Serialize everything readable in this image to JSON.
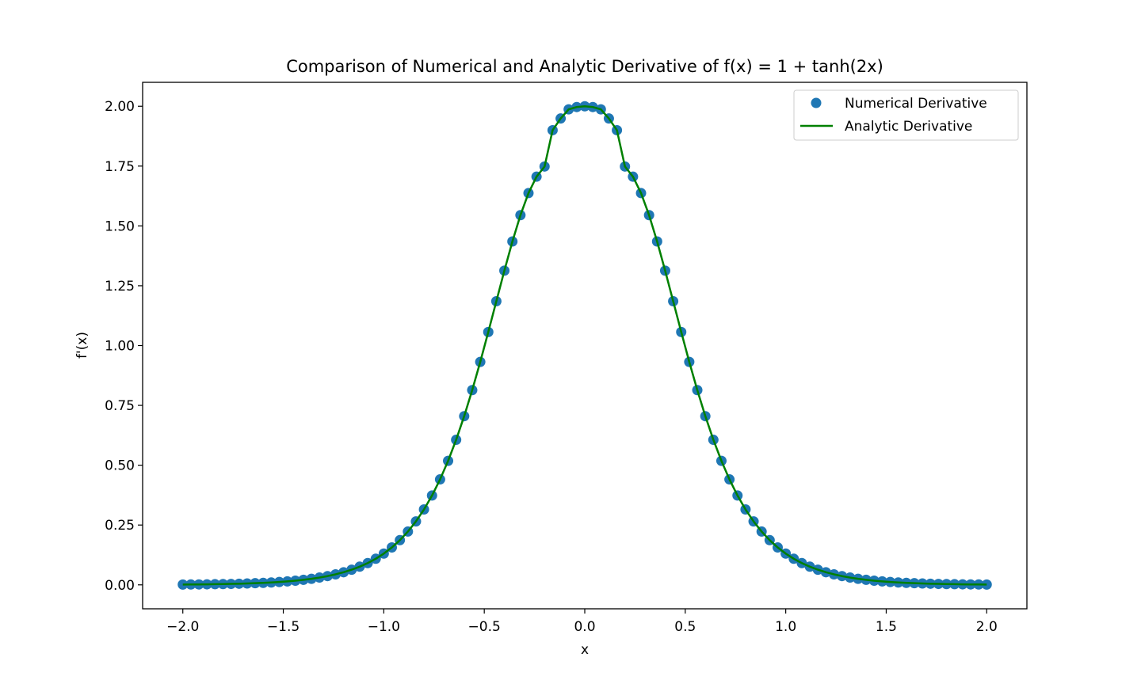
{
  "chart_data": {
    "type": "scatter",
    "title": "Comparison of Numerical and Analytic Derivative of f(x) = 1 + tanh(2x)",
    "xlabel": "x",
    "ylabel": "f'(x)",
    "xlim": [
      -2.2,
      2.2
    ],
    "ylim": [
      -0.1,
      2.1
    ],
    "xticks": [
      -2.0,
      -1.5,
      -1.0,
      -0.5,
      0.0,
      0.5,
      1.0,
      1.5,
      2.0
    ],
    "xtick_labels": [
      "−2.0",
      "−1.5",
      "−1.0",
      "−0.5",
      "0.0",
      "0.5",
      "1.0",
      "1.5",
      "2.0"
    ],
    "yticks": [
      0.0,
      0.25,
      0.5,
      0.75,
      1.0,
      1.25,
      1.5,
      1.75,
      2.0
    ],
    "ytick_labels": [
      "0.00",
      "0.25",
      "0.50",
      "0.75",
      "1.00",
      "1.25",
      "1.50",
      "1.75",
      "2.00"
    ],
    "grid": false,
    "legend_position": "top-right",
    "series": [
      {
        "name": "Numerical Derivative",
        "kind": "scatter",
        "color": "#1f77b4",
        "x": [
          -2.0,
          -1.96,
          -1.92,
          -1.88,
          -1.84,
          -1.8,
          -1.76,
          -1.72,
          -1.68,
          -1.64,
          -1.6,
          -1.56,
          -1.52,
          -1.48,
          -1.44,
          -1.4,
          -1.36,
          -1.32,
          -1.28,
          -1.24,
          -1.2,
          -1.16,
          -1.12,
          -1.08,
          -1.04,
          -1.0,
          -0.96,
          -0.92,
          -0.88,
          -0.84,
          -0.8,
          -0.76,
          -0.72,
          -0.68,
          -0.64,
          -0.6,
          -0.56,
          -0.52,
          -0.48,
          -0.44,
          -0.4,
          -0.36,
          -0.32,
          -0.28,
          -0.24,
          -0.2,
          -0.16,
          -0.12,
          -0.08,
          -0.04,
          0.0,
          0.04,
          0.08,
          0.12,
          0.16,
          0.2,
          0.24,
          0.28,
          0.32,
          0.36,
          0.4,
          0.44,
          0.48,
          0.52,
          0.56,
          0.6,
          0.64,
          0.68,
          0.72,
          0.76,
          0.8,
          0.84,
          0.88,
          0.92,
          0.96,
          1.0,
          1.04,
          1.08,
          1.12,
          1.16,
          1.2,
          1.24,
          1.28,
          1.32,
          1.36,
          1.4,
          1.44,
          1.48,
          1.52,
          1.56,
          1.6,
          1.64,
          1.68,
          1.72,
          1.76,
          1.8,
          1.84,
          1.88,
          1.92,
          1.96,
          2.0
        ],
        "y": [
          0.0013,
          0.0016,
          0.0019,
          0.0023,
          0.0028,
          0.0033,
          0.004,
          0.0048,
          0.0058,
          0.007,
          0.0084,
          0.0101,
          0.0121,
          0.0145,
          0.0175,
          0.0211,
          0.0253,
          0.0305,
          0.0366,
          0.044,
          0.0528,
          0.0634,
          0.076,
          0.0911,
          0.1091,
          0.1307,
          0.1563,
          0.1868,
          0.2228,
          0.2652,
          0.3151,
          0.3733,
          0.4407,
          0.5182,
          0.6062,
          0.7049,
          0.8138,
          0.9318,
          1.0567,
          1.1852,
          1.3131,
          1.435,
          1.5451,
          1.6371,
          1.7057,
          1.7482,
          1.9,
          1.9489,
          1.9871,
          1.9968,
          1.9999,
          1.9968,
          1.9871,
          1.9489,
          1.9,
          1.7482,
          1.7057,
          1.6371,
          1.5451,
          1.435,
          1.3131,
          1.1852,
          1.0567,
          0.9318,
          0.8138,
          0.7049,
          0.6062,
          0.5182,
          0.4407,
          0.3733,
          0.3151,
          0.2652,
          0.2228,
          0.1868,
          0.1563,
          0.1307,
          0.1091,
          0.0911,
          0.076,
          0.0634,
          0.0528,
          0.044,
          0.0366,
          0.0305,
          0.0253,
          0.0211,
          0.0175,
          0.0145,
          0.0121,
          0.0101,
          0.0084,
          0.007,
          0.0058,
          0.0048,
          0.004,
          0.0033,
          0.0028,
          0.0023,
          0.0019,
          0.0016,
          0.0013
        ]
      },
      {
        "name": "Analytic Derivative",
        "kind": "line",
        "color": "#008000",
        "x": [
          -2.0,
          -1.96,
          -1.92,
          -1.88,
          -1.84,
          -1.8,
          -1.76,
          -1.72,
          -1.68,
          -1.64,
          -1.6,
          -1.56,
          -1.52,
          -1.48,
          -1.44,
          -1.4,
          -1.36,
          -1.32,
          -1.28,
          -1.24,
          -1.2,
          -1.16,
          -1.12,
          -1.08,
          -1.04,
          -1.0,
          -0.96,
          -0.92,
          -0.88,
          -0.84,
          -0.8,
          -0.76,
          -0.72,
          -0.68,
          -0.64,
          -0.6,
          -0.56,
          -0.52,
          -0.48,
          -0.44,
          -0.4,
          -0.36,
          -0.32,
          -0.28,
          -0.24,
          -0.2,
          -0.16,
          -0.12,
          -0.08,
          -0.04,
          0.0,
          0.04,
          0.08,
          0.12,
          0.16,
          0.2,
          0.24,
          0.28,
          0.32,
          0.36,
          0.4,
          0.44,
          0.48,
          0.52,
          0.56,
          0.6,
          0.64,
          0.68,
          0.72,
          0.76,
          0.8,
          0.84,
          0.88,
          0.92,
          0.96,
          1.0,
          1.04,
          1.08,
          1.12,
          1.16,
          1.2,
          1.24,
          1.28,
          1.32,
          1.36,
          1.4,
          1.44,
          1.48,
          1.52,
          1.56,
          1.6,
          1.64,
          1.68,
          1.72,
          1.76,
          1.8,
          1.84,
          1.88,
          1.92,
          1.96,
          2.0
        ],
        "y": [
          0.0013,
          0.0016,
          0.0019,
          0.0023,
          0.0028,
          0.0033,
          0.004,
          0.0048,
          0.0058,
          0.007,
          0.0084,
          0.0101,
          0.0121,
          0.0145,
          0.0175,
          0.0211,
          0.0253,
          0.0305,
          0.0366,
          0.044,
          0.0528,
          0.0634,
          0.076,
          0.0911,
          0.1091,
          0.1307,
          0.1563,
          0.1868,
          0.2228,
          0.2652,
          0.3151,
          0.3733,
          0.4407,
          0.5182,
          0.6062,
          0.7049,
          0.8138,
          0.9318,
          1.0567,
          1.1852,
          1.3131,
          1.435,
          1.5451,
          1.6371,
          1.7057,
          1.7482,
          1.9,
          1.9489,
          1.9871,
          1.9968,
          1.9999,
          1.9968,
          1.9871,
          1.9489,
          1.9,
          1.7482,
          1.7057,
          1.6371,
          1.5451,
          1.435,
          1.3131,
          1.1852,
          1.0567,
          0.9318,
          0.8138,
          0.7049,
          0.6062,
          0.5182,
          0.4407,
          0.3733,
          0.3151,
          0.2652,
          0.2228,
          0.1868,
          0.1563,
          0.1307,
          0.1091,
          0.0911,
          0.076,
          0.0634,
          0.0528,
          0.044,
          0.0366,
          0.0305,
          0.0253,
          0.0211,
          0.0175,
          0.0145,
          0.0121,
          0.0101,
          0.0084,
          0.007,
          0.0058,
          0.0048,
          0.004,
          0.0033,
          0.0028,
          0.0023,
          0.0019,
          0.0016,
          0.0013
        ]
      }
    ]
  }
}
